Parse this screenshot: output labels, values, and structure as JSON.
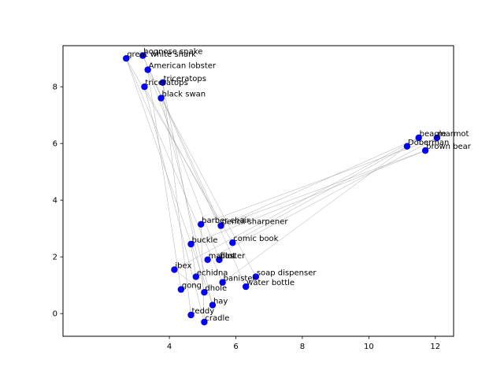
{
  "chart_data": {
    "type": "scatter",
    "title": "",
    "xlabel": "",
    "ylabel": "",
    "xlim": [
      0.8,
      12.55
    ],
    "ylim": [
      -0.8,
      9.45
    ],
    "xticks": [
      4,
      6,
      8,
      10,
      12
    ],
    "yticks": [
      0,
      2,
      4,
      6,
      8
    ],
    "grid": false,
    "point_color": "#0000ff",
    "edge_color": "#999999",
    "points": [
      {
        "label": "hognose snake",
        "x": 3.2,
        "y": 9.1
      },
      {
        "label": "great white shark",
        "x": 2.7,
        "y": 9.0
      },
      {
        "label": "American lobster",
        "x": 3.35,
        "y": 8.6
      },
      {
        "label": "triceratops",
        "x": 3.8,
        "y": 8.15
      },
      {
        "label": "triceratops",
        "x": 3.25,
        "y": 8.0
      },
      {
        "label": "black swan",
        "x": 3.75,
        "y": 7.6
      },
      {
        "label": "beagle",
        "x": 11.5,
        "y": 6.2
      },
      {
        "label": "marmot",
        "x": 12.05,
        "y": 6.2
      },
      {
        "label": "Doberman",
        "x": 11.15,
        "y": 5.9
      },
      {
        "label": "brown bear",
        "x": 11.7,
        "y": 5.75
      },
      {
        "label": "barber chair",
        "x": 4.95,
        "y": 3.15
      },
      {
        "label": "pencil sharpener",
        "x": 5.55,
        "y": 3.1
      },
      {
        "label": "comic book",
        "x": 5.9,
        "y": 2.5
      },
      {
        "label": "buckle",
        "x": 4.65,
        "y": 2.45
      },
      {
        "label": "maillot",
        "x": 5.15,
        "y": 1.9
      },
      {
        "label": "film",
        "x": 5.5,
        "y": 1.9
      },
      {
        "label": "poster",
        "x": 5.5,
        "y": 1.9
      },
      {
        "label": "ibex",
        "x": 4.15,
        "y": 1.55
      },
      {
        "label": "echidna",
        "x": 4.8,
        "y": 1.3
      },
      {
        "label": "soap dispenser",
        "x": 6.6,
        "y": 1.3
      },
      {
        "label": "banister",
        "x": 5.6,
        "y": 1.1
      },
      {
        "label": "water bottle",
        "x": 6.3,
        "y": 0.95
      },
      {
        "label": "gong",
        "x": 4.35,
        "y": 0.85
      },
      {
        "label": "dhole",
        "x": 5.05,
        "y": 0.75
      },
      {
        "label": "hay",
        "x": 5.3,
        "y": 0.3
      },
      {
        "label": "teddy",
        "x": 4.65,
        "y": -0.05
      },
      {
        "label": "cradle",
        "x": 5.05,
        "y": -0.3
      }
    ],
    "edges": [
      [
        1,
        12
      ],
      [
        1,
        20
      ],
      [
        1,
        24
      ],
      [
        0,
        11
      ],
      [
        0,
        21
      ],
      [
        2,
        15
      ],
      [
        2,
        22
      ],
      [
        3,
        25
      ],
      [
        3,
        23
      ],
      [
        4,
        11
      ],
      [
        4,
        26
      ],
      [
        5,
        24
      ],
      [
        5,
        19
      ],
      [
        6,
        11
      ],
      [
        6,
        17
      ],
      [
        7,
        10
      ],
      [
        7,
        14
      ],
      [
        8,
        12
      ],
      [
        8,
        20
      ],
      [
        9,
        13
      ],
      [
        9,
        11
      ],
      [
        10,
        26
      ],
      [
        13,
        18
      ],
      [
        17,
        23
      ]
    ]
  }
}
